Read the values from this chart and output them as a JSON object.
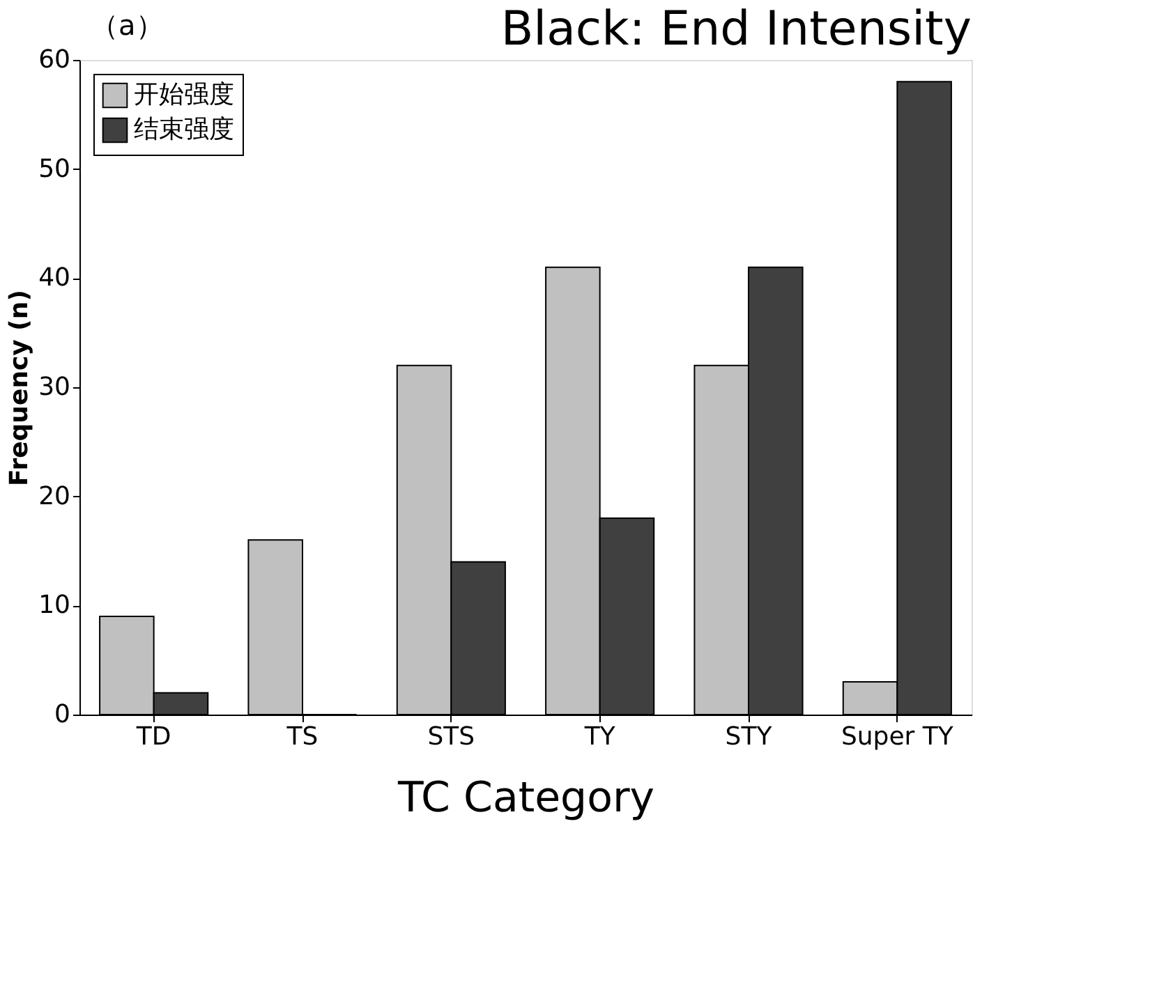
{
  "chart_data": {
    "type": "bar",
    "title": "Black: End Intensity",
    "xlabel": "TC Category",
    "ylabel": "Frequency (n)",
    "annotations": [
      "（a）"
    ],
    "categories": [
      "TD",
      "TS",
      "STS",
      "TY",
      "STY",
      "Super TY"
    ],
    "series": [
      {
        "name": "开始强度",
        "color": "#c0c0c0",
        "values": [
          9,
          16,
          32,
          41,
          32,
          3
        ]
      },
      {
        "name": "结束强度",
        "color": "#404040",
        "values": [
          2,
          0,
          14,
          18,
          41,
          58
        ]
      }
    ],
    "ylim": [
      0,
      60
    ],
    "yticks": [
      0,
      10,
      20,
      30,
      40,
      50,
      60
    ],
    "grid": false,
    "legend": "top left"
  }
}
